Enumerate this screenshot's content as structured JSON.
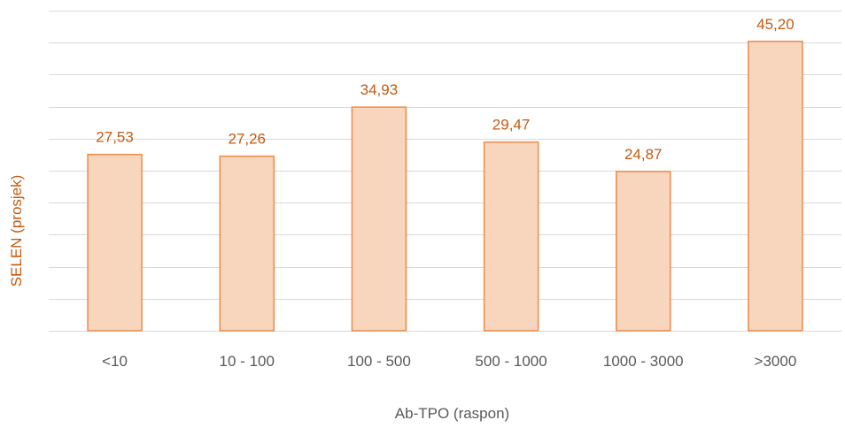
{
  "chart_data": {
    "type": "bar",
    "categories": [
      "<10",
      "10 - 100",
      "100 - 500",
      "500 - 1000",
      "1000 - 3000",
      ">3000"
    ],
    "values": [
      27.53,
      27.26,
      34.93,
      29.47,
      24.87,
      45.2
    ],
    "data_labels": [
      "27,53",
      "27,26",
      "34,93",
      "29,47",
      "24,87",
      "45,20"
    ],
    "xlabel": "Ab-TPO (raspon)",
    "ylabel": "SELEN (prosjek)",
    "ylim": [
      0,
      50
    ],
    "gridlines_every": 5,
    "grid": true,
    "colors": {
      "bar_fill": "#f8d5bd",
      "bar_stroke": "#ec8c48",
      "label_color": "#c55a11",
      "ylabel_color": "#c55a11",
      "xlabel_color": "#595959",
      "grid_color": "#d9d9d9"
    }
  }
}
